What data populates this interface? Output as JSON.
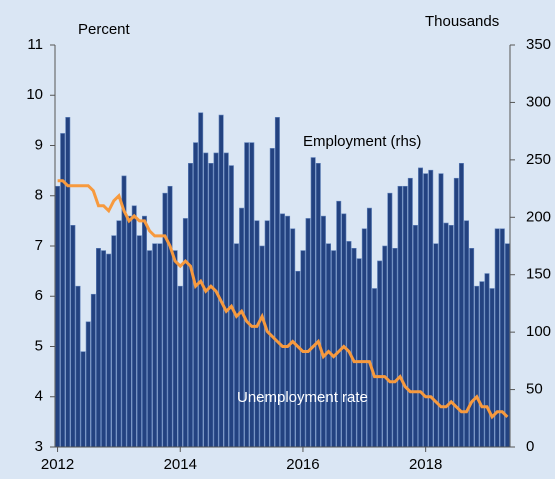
{
  "chart_data": {
    "type": "bar-line",
    "categories": [
      "2012",
      null,
      null,
      null,
      null,
      null,
      null,
      null,
      null,
      null,
      null,
      null,
      null,
      null,
      null,
      null,
      null,
      null,
      null,
      null,
      null,
      null,
      null,
      null,
      "2014",
      null,
      null,
      null,
      null,
      null,
      null,
      null,
      null,
      null,
      null,
      null,
      null,
      null,
      null,
      null,
      null,
      null,
      null,
      null,
      null,
      null,
      null,
      null,
      "2016",
      null,
      null,
      null,
      null,
      null,
      null,
      null,
      null,
      null,
      null,
      null,
      null,
      null,
      null,
      null,
      null,
      null,
      null,
      null,
      null,
      null,
      null,
      null,
      "2018",
      null,
      null,
      null,
      null,
      null,
      null,
      null,
      null,
      null,
      null,
      null,
      null,
      null,
      null,
      null,
      null
    ],
    "series": [
      {
        "name": "Employment (rhs)",
        "type": "bar",
        "axis": "y2",
        "color": "#234280",
        "values": [
          227,
          273,
          287,
          193,
          140,
          83,
          109,
          133,
          173,
          171,
          168,
          184,
          197,
          236,
          201,
          210,
          184,
          201,
          171,
          177,
          177,
          221,
          227,
          171,
          140,
          199,
          247,
          265,
          291,
          256,
          247,
          256,
          289,
          256,
          245,
          177,
          208,
          265,
          265,
          197,
          175,
          197,
          260,
          287,
          203,
          201,
          190,
          153,
          171,
          199,
          252,
          247,
          201,
          177,
          171,
          214,
          203,
          179,
          173,
          164,
          190,
          208,
          138,
          162,
          175,
          221,
          173,
          227,
          227,
          234,
          193,
          243,
          238,
          241,
          177,
          238,
          195,
          193,
          234,
          247,
          197,
          173,
          140,
          144,
          151,
          138,
          190,
          190,
          177
        ]
      },
      {
        "name": "Unemployment rate",
        "type": "line",
        "color": "#f79a3e",
        "values": [
          8.3,
          8.3,
          8.2,
          8.2,
          8.2,
          8.2,
          8.2,
          8.1,
          7.8,
          7.8,
          7.7,
          7.9,
          8.0,
          7.7,
          7.5,
          7.6,
          7.5,
          7.5,
          7.3,
          7.2,
          7.2,
          7.2,
          7.0,
          6.7,
          6.6,
          6.7,
          6.6,
          6.2,
          6.3,
          6.1,
          6.2,
          6.1,
          5.9,
          5.7,
          5.8,
          5.6,
          5.7,
          5.5,
          5.4,
          5.4,
          5.6,
          5.3,
          5.2,
          5.1,
          5.0,
          5.0,
          5.1,
          5.0,
          4.9,
          4.9,
          5.0,
          5.1,
          4.8,
          4.9,
          4.8,
          4.9,
          5.0,
          4.9,
          4.7,
          4.7,
          4.7,
          4.7,
          4.4,
          4.4,
          4.4,
          4.3,
          4.3,
          4.4,
          4.2,
          4.1,
          4.1,
          4.1,
          4.0,
          4.0,
          3.9,
          3.8,
          3.8,
          3.9,
          3.8,
          3.7,
          3.7,
          3.9,
          4.0,
          3.8,
          3.8,
          3.6,
          3.7,
          3.7,
          3.6
        ]
      }
    ],
    "y_label": "Percent",
    "y2_label": "Thousands",
    "ylim": [
      3,
      11
    ],
    "yticks": [
      3,
      4,
      5,
      6,
      7,
      8,
      9,
      10,
      11
    ],
    "y2lim": [
      0,
      350
    ],
    "y2ticks": [
      0,
      50,
      100,
      150,
      200,
      250,
      300,
      350
    ]
  }
}
